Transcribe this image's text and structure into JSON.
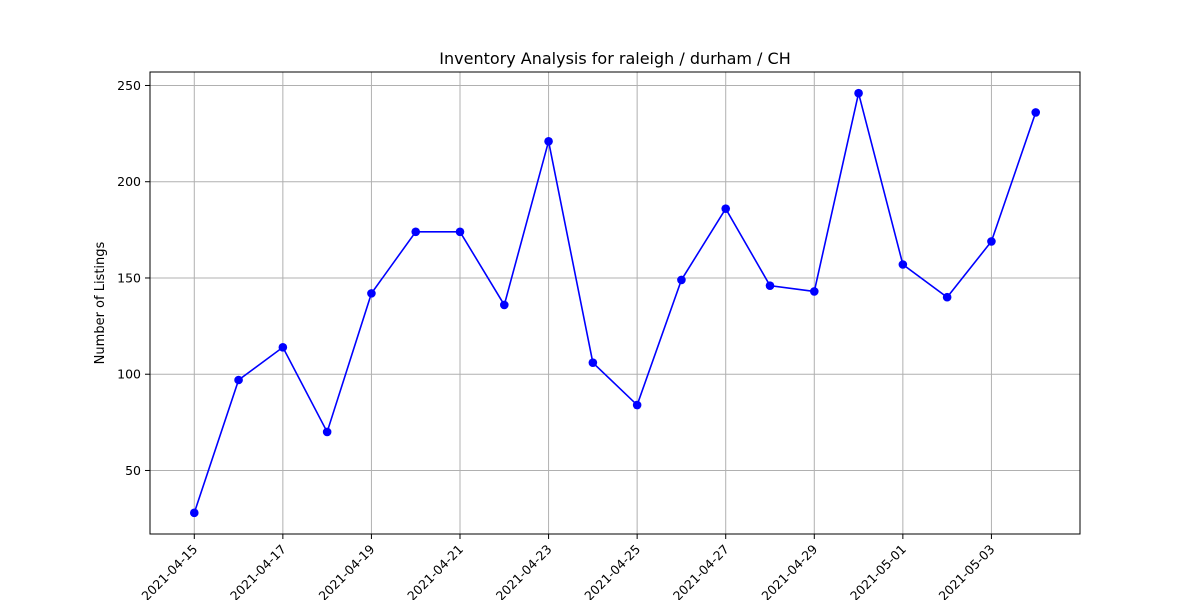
{
  "chart_data": {
    "type": "line",
    "title": "Inventory Analysis for raleigh / durham / CH",
    "xlabel": "",
    "ylabel": "Number of Listings",
    "x": [
      "2021-04-15",
      "2021-04-16",
      "2021-04-17",
      "2021-04-18",
      "2021-04-19",
      "2021-04-20",
      "2021-04-21",
      "2021-04-22",
      "2021-04-23",
      "2021-04-24",
      "2021-04-25",
      "2021-04-26",
      "2021-04-27",
      "2021-04-28",
      "2021-04-29",
      "2021-04-30",
      "2021-05-01",
      "2021-05-02",
      "2021-05-03",
      "2021-05-04"
    ],
    "series": [
      {
        "name": "",
        "values": [
          28,
          97,
          114,
          70,
          142,
          174,
          174,
          136,
          221,
          106,
          84,
          149,
          186,
          146,
          143,
          246,
          157,
          140,
          169,
          236
        ]
      }
    ],
    "xticks": [
      "2021-04-15",
      "2021-04-17",
      "2021-04-19",
      "2021-04-21",
      "2021-04-23",
      "2021-04-25",
      "2021-04-27",
      "2021-04-29",
      "2021-05-01",
      "2021-05-03"
    ],
    "yticks": [
      50,
      100,
      150,
      200,
      250
    ],
    "xlim": [
      "2021-04-14",
      "2021-05-05"
    ],
    "ylim": [
      17,
      257
    ],
    "grid": true,
    "line_color": "#0000ff",
    "marker": "circle"
  }
}
